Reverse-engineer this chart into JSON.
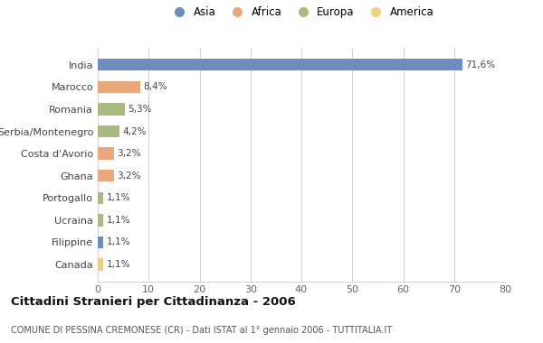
{
  "countries": [
    "India",
    "Marocco",
    "Romania",
    "Serbia/Montenegro",
    "Costa d'Avorio",
    "Ghana",
    "Portogallo",
    "Ucraina",
    "Filippine",
    "Canada"
  ],
  "values": [
    71.6,
    8.4,
    5.3,
    4.2,
    3.2,
    3.2,
    1.1,
    1.1,
    1.1,
    1.1
  ],
  "labels": [
    "71,6%",
    "8,4%",
    "5,3%",
    "4,2%",
    "3,2%",
    "3,2%",
    "1,1%",
    "1,1%",
    "1,1%",
    "1,1%"
  ],
  "continents": [
    "Asia",
    "Africa",
    "Europa",
    "Europa",
    "Africa",
    "Africa",
    "Europa",
    "Europa",
    "Asia",
    "America"
  ],
  "colors": {
    "Asia": "#6b8ebf",
    "Africa": "#e8a87c",
    "Europa": "#a8ba7f",
    "America": "#f0d080"
  },
  "legend_order": [
    "Asia",
    "Africa",
    "Europa",
    "America"
  ],
  "xlim": [
    0,
    80
  ],
  "xticks": [
    0,
    10,
    20,
    30,
    40,
    50,
    60,
    70,
    80
  ],
  "title": "Cittadini Stranieri per Cittadinanza - 2006",
  "subtitle": "COMUNE DI PESSINA CREMONESE (CR) - Dati ISTAT al 1° gennaio 2006 - TUTTITALIA.IT",
  "bg_color": "#ffffff",
  "grid_color": "#d0d0d0",
  "bar_height": 0.55
}
